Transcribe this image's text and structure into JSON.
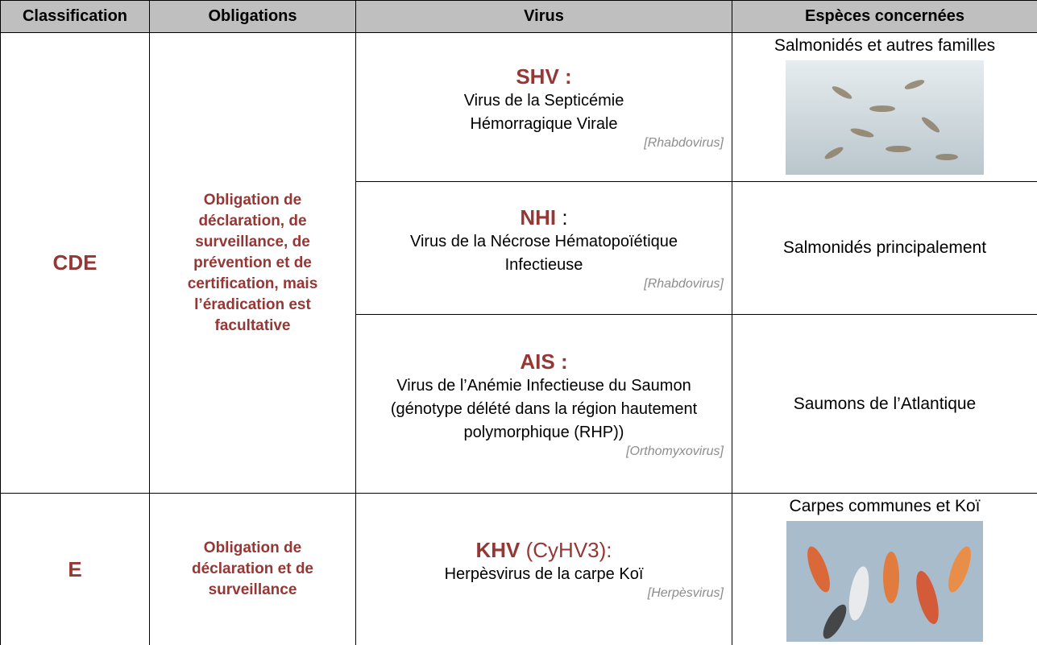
{
  "table": {
    "header": [
      "Classification",
      "Obligations",
      "Virus",
      "Espèces concernées"
    ],
    "groups": [
      {
        "classification": "CDE",
        "obligations": "Obligation de déclaration, de surveillance, de prévention et de certification, mais l’éradication est facultative",
        "rows": [
          {
            "code": "SHV :",
            "name": "Virus de la Septicémie Hémorragique Virale",
            "genus": "[Rhabdovirus]",
            "species": "Salmonidés et autres familles"
          },
          {
            "code": "NHI",
            "rest": " :",
            "name": "Virus de la Nécrose Hématopoïétique Infectieuse",
            "genus": "[Rhabdovirus]",
            "species": "Salmonidés principalement"
          },
          {
            "code": "AIS :",
            "name": "Virus de l’Anémie Infectieuse du Saumon (génotype délété dans la région hautement polymorphique (RHP))",
            "genus": "[Orthomyxovirus]",
            "species": "Saumons de l’Atlantique"
          }
        ]
      },
      {
        "classification": "E",
        "obligations": "Obligation de déclaration et de surveillance",
        "rows": [
          {
            "code": "KHV",
            "rest": " (CyHV3):",
            "name": "Herpèsvirus de la carpe Koï",
            "genus": "[Herpèsvirus]",
            "species": "Carpes communes et Koï"
          }
        ]
      }
    ]
  }
}
